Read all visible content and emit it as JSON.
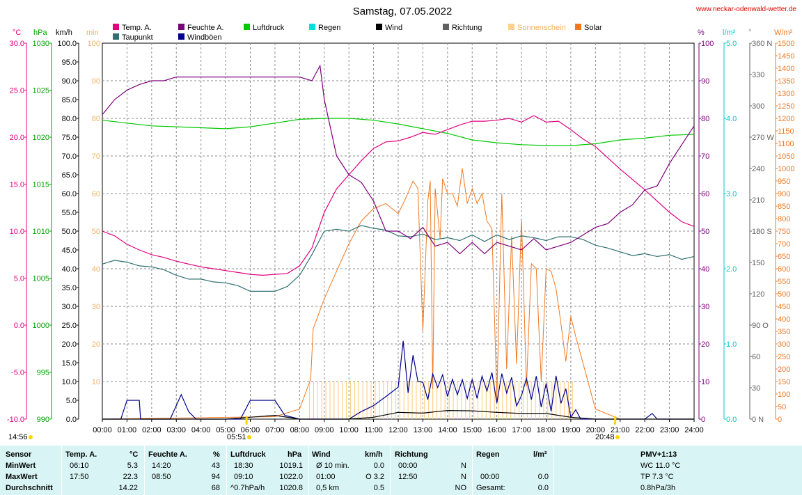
{
  "header": {
    "title": "Samstag, 07.05.2022",
    "site": "www.neckar-odenwald-wetter.de"
  },
  "legend": [
    {
      "label": "Temp. A.",
      "color": "#e0007f"
    },
    {
      "label": "Taupunkt",
      "color": "#2f6f6f"
    },
    {
      "label": "Feuchte A.",
      "color": "#7b007b"
    },
    {
      "label": "Windböen",
      "color": "#00008b"
    },
    {
      "label": "Luftdruck",
      "color": "#00c800"
    },
    {
      "label": "Regen",
      "color": "#00e0e0"
    },
    {
      "label": "Wind",
      "color": "#000000"
    },
    {
      "label": "Richtung",
      "color": "#606060"
    },
    {
      "label": "Sonnenschein",
      "color": "#ffd28c"
    },
    {
      "label": "Solar",
      "color": "#f07820"
    }
  ],
  "axis_units": {
    "temp": "°C",
    "pressure": "hPa",
    "wind": "km/h",
    "sun": "min",
    "humidity": "%",
    "rain": "l/m²",
    "direction": "°",
    "solar": "W/m²"
  },
  "axes": {
    "temp_ticks": [
      "30.0",
      "25.0",
      "20.0",
      "15.0",
      "10.0",
      "5.0",
      "0.0",
      "-5.0",
      "-10.0"
    ],
    "pressure_ticks": [
      "1030",
      "1025",
      "1020",
      "1015",
      "1010",
      "1005",
      "1000",
      "995",
      "990"
    ],
    "wind_ticks": [
      "100.0",
      "95.0",
      "90.0",
      "85.0",
      "80.0",
      "75.0",
      "70.0",
      "65.0",
      "60.0",
      "55.0",
      "50.0",
      "45.0",
      "40.0",
      "35.0",
      "30.0",
      "25.0",
      "20.0",
      "15.0",
      "10.0",
      "5.0",
      "0.0"
    ],
    "sun_ticks": [
      "100",
      "90",
      "80",
      "70",
      "60",
      "50",
      "40",
      "30",
      "20",
      "10"
    ],
    "humidity_ticks": [
      "100",
      "90",
      "80",
      "70",
      "60",
      "50",
      "40",
      "30",
      "20",
      "10",
      "0"
    ],
    "rain_ticks": [
      "5.0",
      "4.0",
      "3.0",
      "2.0",
      "1.0",
      "0.0"
    ],
    "direction_ticks": [
      "360 N",
      "330",
      "300",
      "270 W",
      "240",
      "210",
      "180 S",
      "150",
      "120",
      "90 O",
      "60",
      "30",
      "0 N"
    ],
    "solar_ticks": [
      "1500",
      "1450",
      "1400",
      "1350",
      "1300",
      "1250",
      "1200",
      "1150",
      "1100",
      "1050",
      "1000",
      "950",
      "900",
      "850",
      "800",
      "750",
      "700",
      "650",
      "600",
      "550",
      "500",
      "450",
      "400",
      "350",
      "300",
      "250",
      "200",
      "150",
      "100",
      "50",
      "0"
    ],
    "time_ticks": [
      "00:00",
      "01:00",
      "02:00",
      "03:00",
      "04:00",
      "05:00",
      "06:00",
      "07:00",
      "08:00",
      "09:00",
      "10:00",
      "11:00",
      "12:00",
      "13:00",
      "14:00",
      "15:00",
      "16:00",
      "17:00",
      "18:00",
      "19:00",
      "20:00",
      "21:00",
      "22:00",
      "23:00",
      "24:00"
    ]
  },
  "markers": {
    "now": "14:56",
    "sunrise": "05:51",
    "sunset": "20:48"
  },
  "chart_data": {
    "type": "line",
    "title": "Samstag, 07.05.2022",
    "x_range": [
      "00:00",
      "24:00"
    ],
    "ylim": {
      "temp": [
        -10,
        30
      ],
      "pressure": [
        990,
        1030
      ],
      "wind": [
        0,
        100
      ],
      "humidity": [
        0,
        100
      ],
      "rain": [
        0,
        5
      ],
      "direction": [
        0,
        360
      ],
      "solar": [
        0,
        1500
      ]
    },
    "grid": true,
    "series": [
      {
        "name": "Temp. A.",
        "axis": "temp",
        "color": "#e0007f",
        "x": [
          0,
          0.5,
          1,
          1.5,
          2,
          2.5,
          3,
          3.5,
          4,
          4.5,
          5,
          5.5,
          6,
          6.5,
          7,
          7.5,
          8,
          8.5,
          9,
          9.5,
          10,
          10.5,
          11,
          11.5,
          12,
          12.5,
          13,
          13.5,
          14,
          14.5,
          15,
          15.5,
          16,
          16.5,
          17,
          17.5,
          18,
          18.5,
          19,
          19.5,
          20,
          20.5,
          21,
          21.5,
          22,
          22.5,
          23,
          23.5,
          24
        ],
        "y": [
          10,
          9.5,
          8.6,
          8,
          7.5,
          7.2,
          6.8,
          6.5,
          6.2,
          6,
          5.8,
          5.6,
          5.4,
          5.3,
          5.4,
          5.5,
          6.3,
          8.2,
          12,
          14.5,
          16,
          17.5,
          18.8,
          19.5,
          19.6,
          20,
          20.5,
          20.3,
          20.8,
          21.3,
          21.7,
          21.7,
          21.8,
          22,
          21.6,
          22.3,
          21.6,
          21.7,
          20.8,
          19.8,
          19,
          17.8,
          16.6,
          15.5,
          14.4,
          13.2,
          12,
          11,
          10.5
        ]
      },
      {
        "name": "Taupunkt",
        "axis": "temp",
        "color": "#2f6f6f",
        "x": [
          0,
          0.5,
          1,
          1.5,
          2,
          2.5,
          3,
          3.5,
          4,
          4.5,
          5,
          5.5,
          6,
          6.5,
          7,
          7.5,
          8,
          8.5,
          9,
          9.5,
          10,
          10.5,
          11,
          11.5,
          12,
          12.5,
          13,
          13.5,
          14,
          14.5,
          15,
          15.5,
          16,
          16.5,
          17,
          17.5,
          18,
          18.5,
          19,
          19.5,
          20,
          20.5,
          21,
          21.5,
          22,
          22.5,
          23,
          23.5,
          24
        ],
        "y": [
          6.5,
          6.9,
          6.7,
          6.3,
          6.2,
          5.9,
          5.3,
          4.9,
          4.9,
          4.6,
          4.5,
          4.2,
          3.6,
          3.6,
          3.6,
          4.1,
          5.3,
          7.5,
          10,
          10.2,
          10,
          10.6,
          10.3,
          10.1,
          9.5,
          9.4,
          9.7,
          9.1,
          9.3,
          9,
          9.6,
          8.9,
          9.6,
          9.1,
          9.5,
          9.3,
          9,
          9.4,
          9.4,
          9.1,
          8.5,
          8.2,
          7.8,
          7.4,
          7.6,
          7.3,
          7.5,
          7,
          7.3
        ]
      },
      {
        "name": "Feuchte A.",
        "axis": "humidity",
        "color": "#7b007b",
        "x": [
          0,
          0.5,
          1,
          1.5,
          2,
          2.5,
          3,
          3.5,
          4,
          4.5,
          5,
          5.5,
          6,
          6.5,
          7,
          7.5,
          8,
          8.5,
          8.83,
          9,
          9.5,
          10,
          10.5,
          11,
          11.5,
          12,
          12.5,
          13,
          13.5,
          14,
          14.5,
          15,
          15.5,
          16,
          16.5,
          17,
          17.5,
          18,
          18.5,
          19,
          19.5,
          20,
          20.5,
          21,
          21.5,
          22,
          22.5,
          23,
          23.5,
          24
        ],
        "y": [
          81,
          85,
          87.5,
          89,
          90,
          90,
          91,
          91,
          91,
          91,
          91,
          91,
          91,
          91,
          91,
          91,
          91,
          90,
          94,
          85,
          70,
          65,
          63,
          58,
          50,
          50,
          48,
          51,
          46,
          47,
          44,
          47,
          44,
          47,
          46,
          45,
          48,
          45,
          46,
          47,
          49,
          51,
          52,
          55,
          57,
          61,
          62,
          68,
          73,
          78
        ]
      },
      {
        "name": "Luftdruck",
        "axis": "pressure",
        "color": "#00c800",
        "x": [
          0,
          1,
          2,
          3,
          4,
          5,
          6,
          7,
          8,
          9,
          10,
          11,
          12,
          13,
          14,
          15,
          16,
          17,
          18,
          19,
          20,
          21,
          22,
          23,
          24
        ],
        "y": [
          1021.8,
          1021.5,
          1021.2,
          1021.1,
          1021,
          1020.9,
          1021.1,
          1021.5,
          1021.9,
          1022,
          1022,
          1021.8,
          1021.4,
          1020.9,
          1020.4,
          1019.7,
          1019.4,
          1019.2,
          1019.1,
          1019.1,
          1019.3,
          1019.7,
          1019.9,
          1020.2,
          1020.3
        ]
      },
      {
        "name": "Windböen",
        "axis": "wind",
        "color": "#00008b",
        "x": [
          0,
          0.75,
          1,
          1.5,
          1.55,
          2,
          2.75,
          3.2,
          3.5,
          3.8,
          4,
          4.4,
          5,
          5.6,
          6,
          6.3,
          7,
          7.4,
          8,
          9,
          10,
          10.5,
          11,
          11.5,
          12,
          12.2,
          12.4,
          12.6,
          12.8,
          13,
          13.2,
          13.4,
          13.6,
          13.8,
          14,
          14.2,
          14.4,
          14.6,
          14.8,
          15,
          15.2,
          15.4,
          15.6,
          15.8,
          16,
          16.2,
          16.4,
          16.6,
          16.8,
          17,
          17.2,
          17.4,
          17.6,
          17.8,
          18,
          18.2,
          18.4,
          18.6,
          18.8,
          19,
          19.2,
          19.4,
          19.6,
          19.8,
          20,
          21,
          22,
          22.3,
          22.5,
          23,
          24
        ],
        "y": [
          0,
          0,
          5,
          5,
          0,
          0,
          0,
          6.5,
          2,
          0,
          0,
          0,
          0,
          0,
          5,
          5,
          5,
          1,
          0,
          0,
          0,
          2,
          3.6,
          6,
          8.5,
          20.8,
          7,
          17,
          10,
          9.8,
          5.2,
          12,
          8.4,
          11.8,
          6,
          10.6,
          6.5,
          10.5,
          5.5,
          10.6,
          5.5,
          11.4,
          7.5,
          12.4,
          4.3,
          12.1,
          6.9,
          11.1,
          3.5,
          6.3,
          10.8,
          5.2,
          11.4,
          3.2,
          9.5,
          2.1,
          11.5,
          4.2,
          8.1,
          0.5,
          2.5,
          0,
          0,
          0,
          0,
          0,
          0,
          1.5,
          0,
          0,
          0
        ]
      },
      {
        "name": "Solar",
        "axis": "solar",
        "color": "#f07820",
        "x": [
          0,
          7,
          8,
          8.45,
          8.55,
          9,
          9.5,
          10,
          10.5,
          11,
          11.5,
          12,
          12.3,
          12.6,
          12.8,
          13,
          13.2,
          13.3,
          13.4,
          13.5,
          13.7,
          13.8,
          14,
          14.2,
          14.4,
          14.6,
          14.8,
          15,
          15.2,
          15.4,
          15.6,
          15.8,
          16,
          16.2,
          16.4,
          16.6,
          16.8,
          17,
          17.2,
          17.4,
          17.6,
          17.8,
          18,
          18.2,
          18.4,
          18.6,
          18.8,
          19,
          19.2,
          20,
          20.5,
          21,
          24
        ],
        "y": [
          0,
          10,
          40,
          160,
          360,
          480,
          590,
          700,
          790,
          840,
          860,
          820,
          880,
          950,
          920,
          350,
          870,
          950,
          120,
          920,
          720,
          960,
          900,
          900,
          850,
          1000,
          860,
          920,
          860,
          900,
          790,
          760,
          80,
          900,
          200,
          730,
          220,
          800,
          130,
          620,
          600,
          150,
          600,
          590,
          520,
          380,
          230,
          410,
          330,
          40,
          20,
          0,
          0
        ]
      },
      {
        "name": "Sonnenschein",
        "axis": "wind",
        "color": "#ffd28c",
        "x_range": [
          8.4,
          19.1
        ],
        "y": [
          10,
          10
        ]
      },
      {
        "name": "Wind",
        "axis": "wind",
        "color": "#000000",
        "x": [
          0,
          1,
          2,
          3,
          4,
          5,
          6,
          7,
          8,
          9,
          10,
          11,
          12,
          13,
          14,
          15,
          16,
          17,
          18,
          19,
          20,
          21,
          22,
          23,
          24
        ],
        "y": [
          0,
          0,
          0,
          0,
          0,
          0,
          0.5,
          1,
          0,
          0,
          0,
          0.5,
          1.8,
          1.6,
          2.3,
          2.2,
          1.8,
          1.5,
          1.5,
          0.5,
          0,
          0,
          0,
          0,
          0
        ]
      }
    ]
  },
  "summary": {
    "headers": [
      "Sensor",
      "Temp. A.",
      "°C",
      "Feuchte A.",
      "%",
      "Luftdruck",
      "hPa",
      "Wind",
      "km/h",
      "Richtung",
      "Regen",
      "l/m²",
      "PMV+1:13"
    ],
    "rows": [
      {
        "label": "MinWert",
        "temp_time": "06:10",
        "temp": "5.3",
        "hum_time": "14:20",
        "hum": "43",
        "press_time": "18:30",
        "press": "1019.1",
        "wind_label": "Ø 10 min.",
        "wind": "0.0",
        "dir_time": "00:00",
        "dir": "N",
        "rain_time": "",
        "rain": "",
        "pmv": "WC 11.0 °C"
      },
      {
        "label": "MaxWert",
        "temp_time": "17:50",
        "temp": "22.3",
        "hum_time": "08:50",
        "hum": "94",
        "press_time": "09:10",
        "press": "1022.0",
        "wind_label": "01:00",
        "wind": "O 3.2",
        "dir_time": "12:50",
        "dir": "N",
        "rain_time": "00:00",
        "rain": "0.0",
        "pmv": "TP 7.3 °C"
      },
      {
        "label": "Durchschnitt",
        "temp_time": "",
        "temp": "14.22",
        "hum_time": "",
        "hum": "68",
        "press_time": "^0.7hPa/h",
        "press": "1020.8",
        "wind_label": "0,5 km",
        "wind": "0.5",
        "dir_time": "",
        "dir": "NO",
        "rain_time": "Gesamt:",
        "rain": "0.0",
        "pmv": "0.8hPa/3h"
      }
    ]
  }
}
